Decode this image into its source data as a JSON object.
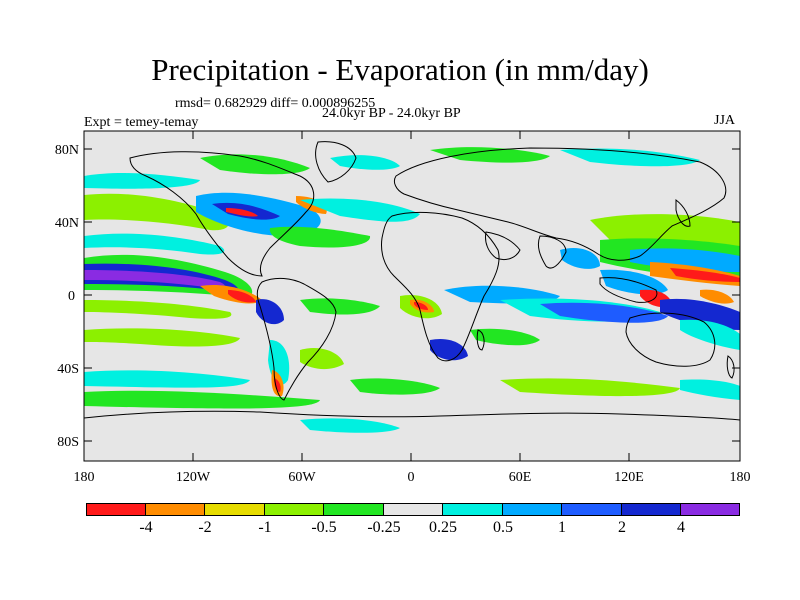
{
  "title": "Precipitation - Evaporation (in mm/day)",
  "stats": "rmsd= 0.682929 diff= 0.000896255",
  "period": "24.0kyr BP - 24.0kyr BP",
  "experiment": "Expt = temey-temay",
  "season": "JJA",
  "axes": {
    "lat_labels": [
      "80N",
      "40N",
      "0",
      "40S",
      "80S"
    ],
    "lon_labels": [
      "180",
      "120W",
      "60W",
      "0",
      "60E",
      "120E",
      "180"
    ]
  },
  "colorbar": {
    "colors": [
      "#ff1a1a",
      "#ff8c00",
      "#e6dc00",
      "#8cf000",
      "#22e622",
      "#e6e6e6",
      "#00f0e0",
      "#00aaff",
      "#1e5cff",
      "#1428d0",
      "#8a2be2"
    ],
    "labels": [
      "-4",
      "-2",
      "-1",
      "-0.5",
      "-0.25",
      "0.25",
      "0.5",
      "1",
      "2",
      "4"
    ]
  },
  "colors": {
    "background": "#e6e6e6",
    "coast": "#000000"
  }
}
